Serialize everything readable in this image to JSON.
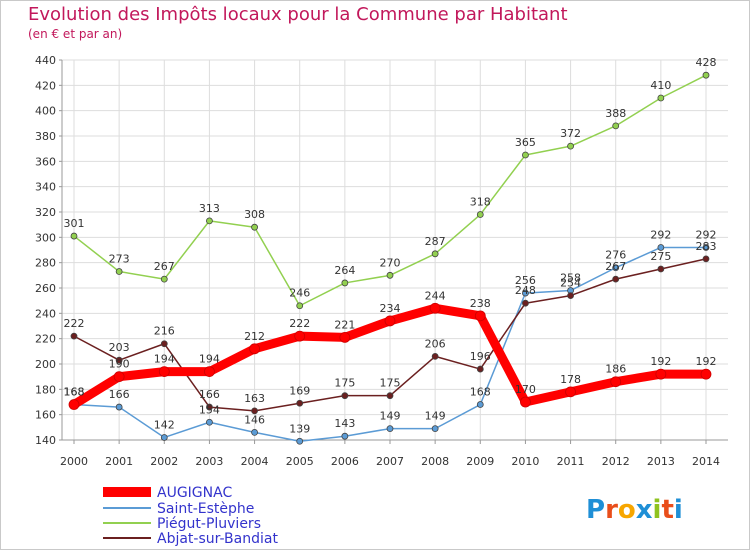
{
  "chart_data": {
    "type": "line",
    "title": "Evolution des Impôts locaux pour la Commune par Habitant",
    "subtitle": "(en € et par an)",
    "xlabel": "",
    "ylabel": "",
    "ylim": [
      140,
      440
    ],
    "y_ticks": [
      140,
      160,
      180,
      200,
      220,
      240,
      260,
      280,
      300,
      320,
      340,
      360,
      380,
      400,
      420,
      440
    ],
    "grid": true,
    "legend_position": "bottom-left",
    "categories": [
      "2000",
      "2001",
      "2002",
      "2003",
      "2004",
      "2005",
      "2006",
      "2007",
      "2008",
      "2009",
      "2010",
      "2011",
      "2012",
      "2013",
      "2014"
    ],
    "series": [
      {
        "name": "AUGIGNAC",
        "color": "#ff0000",
        "label_color": "#3333cc",
        "values": [
          168,
          190,
          194,
          194,
          212,
          222,
          221,
          234,
          244,
          238,
          170,
          178,
          186,
          192,
          192
        ]
      },
      {
        "name": "Saint-Estèphe",
        "color": "#5b9bd5",
        "label_color": "#3333cc",
        "values": [
          168,
          166,
          142,
          154,
          146,
          139,
          143,
          149,
          149,
          168,
          256,
          258,
          276,
          292,
          292
        ]
      },
      {
        "name": "Piégut-Pluviers",
        "color": "#92d050",
        "label_color": "#3333cc",
        "values": [
          301,
          273,
          267,
          313,
          308,
          246,
          264,
          270,
          287,
          318,
          365,
          372,
          388,
          410,
          428
        ]
      },
      {
        "name": "Abjat-sur-Bandiat",
        "color": "#6b2020",
        "label_color": "#3333cc",
        "values": [
          222,
          203,
          216,
          166,
          163,
          169,
          175,
          175,
          206,
          196,
          248,
          254,
          267,
          275,
          283
        ]
      }
    ]
  },
  "brand": {
    "text": "Proxiti"
  },
  "colors": {
    "title": "#c2185b",
    "subtitle": "#c2185b",
    "grid": "#dddddd",
    "axis": "#999999"
  }
}
